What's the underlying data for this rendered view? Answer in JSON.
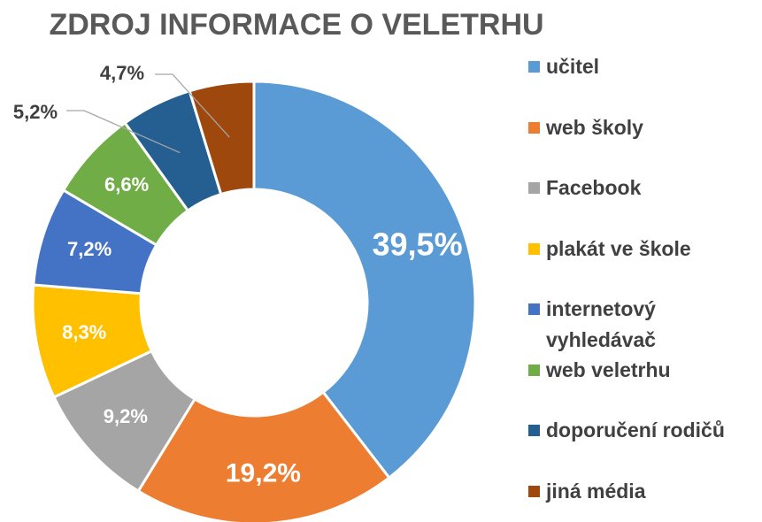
{
  "chart_data": {
    "type": "donut",
    "title": "ZDROJ INFORMACE O VELETRHU",
    "categories": [
      "učitel",
      "web školy",
      "Facebook",
      "plakát ve škole",
      "internetový vyhledávač",
      "web veletrhu",
      "doporučení rodičů",
      "jiná média"
    ],
    "values": [
      39.5,
      19.2,
      9.2,
      8.3,
      7.2,
      6.6,
      5.2,
      4.7
    ],
    "value_labels": [
      "39,5%",
      "19,2%",
      "9,2%",
      "8,3%",
      "7,2%",
      "6,6%",
      "5,2%",
      "4,7%"
    ],
    "colors": [
      "#5b9bd5",
      "#ed7d31",
      "#a5a5a5",
      "#ffc000",
      "#4472c4",
      "#70ad47",
      "#255e91",
      "#9e480e"
    ],
    "legend": "right"
  }
}
